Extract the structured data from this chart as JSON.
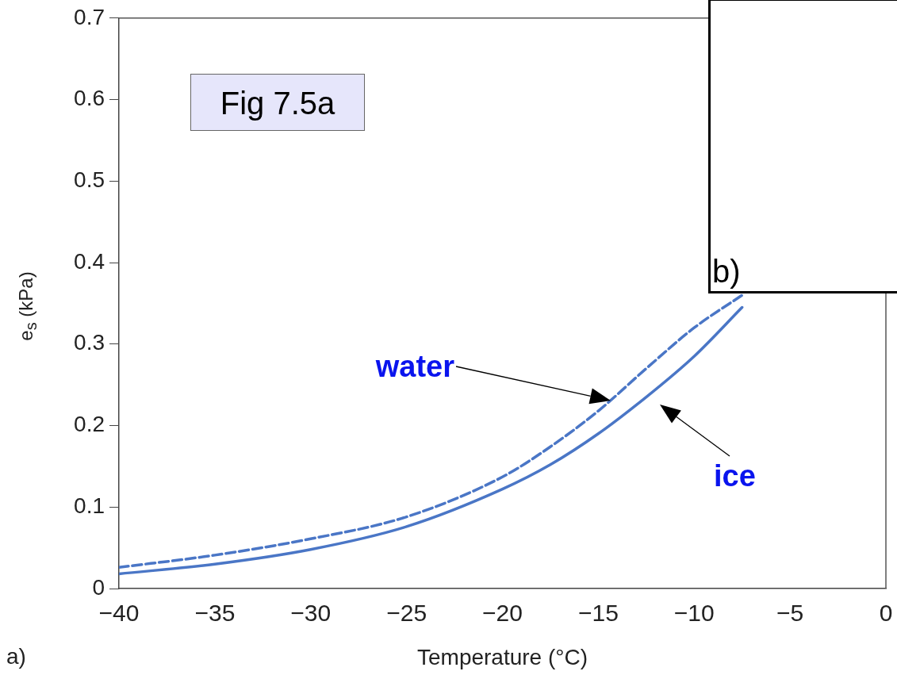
{
  "chart_data": [
    {
      "type": "line",
      "xlabel": "Temperature (°C)",
      "ylabel": "e$_{s}$ (kPa)",
      "x": [
        -40,
        -35,
        -30,
        -25,
        -20,
        -17.5,
        -15,
        -12.5,
        -10,
        -7.5
      ],
      "series": [
        {
          "color": "#4a76c6",
          "line_style": "dashed",
          "values": [
            0.026,
            0.041,
            0.061,
            0.088,
            0.137,
            0.174,
            0.218,
            0.27,
            0.32,
            0.36
          ]
        },
        {
          "color": "#4a76c6",
          "line_style": "solid",
          "values": [
            0.018,
            0.03,
            0.048,
            0.076,
            0.122,
            0.152,
            0.19,
            0.235,
            0.285,
            0.345
          ]
        }
      ],
      "xlim": [
        -40,
        0
      ],
      "ylim": [
        0,
        0.7
      ],
      "xticks": [
        {
          "value": -40,
          "label": "−40"
        },
        {
          "value": -35,
          "label": "−35"
        },
        {
          "value": -30,
          "label": "−30"
        },
        {
          "value": -25,
          "label": "−25"
        },
        {
          "value": -20,
          "label": "−20"
        },
        {
          "value": -15,
          "label": "−15"
        },
        {
          "value": -10,
          "label": "−10"
        },
        {
          "value": -5,
          "label": "−5"
        },
        0
      ],
      "yticks": [
        0,
        0.1,
        0.2,
        0.3,
        0.4,
        0.5,
        0.6,
        0.7
      ],
      "grid": false,
      "legend": false,
      "marker": "none",
      "annotations": [
        "Fig 7.5a",
        "a)",
        "water",
        "ice"
      ]
    },
    {
      "type": "other",
      "annotations": [
        "b)"
      ]
    }
  ]
}
